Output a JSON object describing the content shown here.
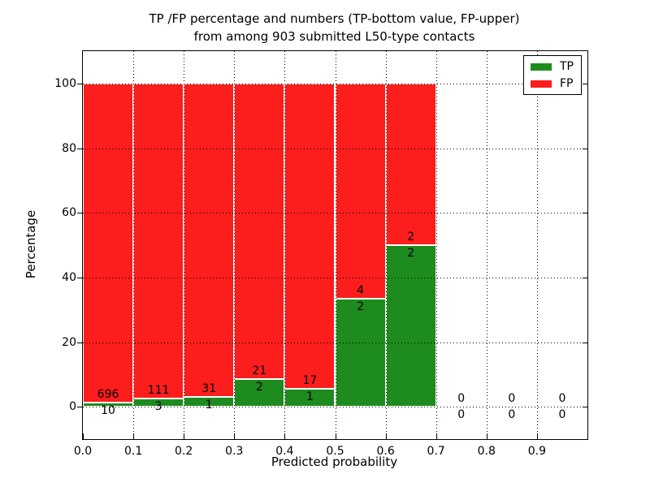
{
  "chart_data": {
    "type": "bar",
    "stacked": true,
    "title_line1": "TP /FP percentage and numbers (TP-bottom value, FP-upper)",
    "title_line2": "from among 903 submitted L50-type contacts",
    "xlabel": "Predicted probability",
    "ylabel": "Percentage",
    "xlim": [
      0,
      1.0
    ],
    "ylim": [
      -10,
      110
    ],
    "grid": true,
    "xtick_values": [
      0.0,
      0.1,
      0.2,
      0.3,
      0.4,
      0.5,
      0.6,
      0.7,
      0.8,
      0.9
    ],
    "xtick_labels": [
      "0.0",
      "0.1",
      "0.2",
      "0.3",
      "0.4",
      "0.5",
      "0.6",
      "0.7",
      "0.8",
      "0.9"
    ],
    "ytick_values": [
      0,
      20,
      40,
      60,
      80,
      100
    ],
    "ytick_labels": [
      "0",
      "20",
      "40",
      "60",
      "80",
      "100"
    ],
    "bin_width": 0.1,
    "bins": [
      {
        "x0": 0.0,
        "x1": 0.1,
        "tp": 10,
        "fp": 696
      },
      {
        "x0": 0.1,
        "x1": 0.2,
        "tp": 3,
        "fp": 111
      },
      {
        "x0": 0.2,
        "x1": 0.3,
        "tp": 1,
        "fp": 31
      },
      {
        "x0": 0.3,
        "x1": 0.4,
        "tp": 2,
        "fp": 21
      },
      {
        "x0": 0.4,
        "x1": 0.5,
        "tp": 1,
        "fp": 17
      },
      {
        "x0": 0.5,
        "x1": 0.6,
        "tp": 2,
        "fp": 4
      },
      {
        "x0": 0.6,
        "x1": 0.7,
        "tp": 2,
        "fp": 2
      },
      {
        "x0": 0.7,
        "x1": 0.8,
        "tp": 0,
        "fp": 0
      },
      {
        "x0": 0.8,
        "x1": 0.9,
        "tp": 0,
        "fp": 0
      },
      {
        "x0": 0.9,
        "x1": 1.0,
        "tp": 0,
        "fp": 0
      }
    ],
    "colors": {
      "tp": "#1e8b1e",
      "fp": "#fc1d1d",
      "grid": "#000000",
      "axes": "#000000",
      "bar_edge": "#ffffff"
    },
    "legend": {
      "position": "upper right",
      "entries": [
        {
          "label": "TP",
          "color_key": "tp"
        },
        {
          "label": "FP",
          "color_key": "fp"
        }
      ]
    }
  }
}
